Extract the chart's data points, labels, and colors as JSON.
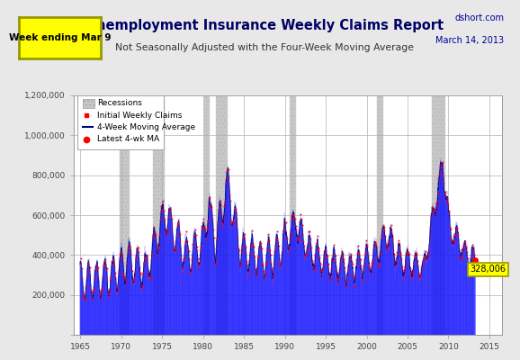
{
  "title": "Unemployment Insurance Weekly Claims Report",
  "subtitle": "Not Seasonally Adjusted with the Four-Week Moving Average",
  "top_left_label": "Week ending Mar 9",
  "top_right_line1": "dshort.com",
  "top_right_line2": "March 14, 2013",
  "latest_value": 328006,
  "latest_label": "328,006",
  "xlabel_years": [
    1965,
    1970,
    1975,
    1980,
    1985,
    1990,
    1995,
    2000,
    2005,
    2010,
    2015
  ],
  "ylim": [
    0,
    1200000
  ],
  "yticks": [
    0,
    200000,
    400000,
    600000,
    800000,
    1000000,
    1200000
  ],
  "recession_bands": [
    [
      1969.83,
      1970.92
    ],
    [
      1973.92,
      1975.25
    ],
    [
      1980.17,
      1980.75
    ],
    [
      1981.58,
      1982.92
    ],
    [
      1990.58,
      1991.25
    ],
    [
      2001.25,
      2001.92
    ],
    [
      2007.92,
      2009.5
    ]
  ],
  "bg_color": "#e8e8e8",
  "plot_bg_color": "#ffffff",
  "bar_color": "#1a1aff",
  "dot_color": "#ff0000",
  "recession_color": "#c8c8c8",
  "grid_color": "#b0b0b0",
  "title_color": "#000066",
  "subtitle_color": "#333333",
  "top_right_color": "#000099",
  "xlim": [
    1964.2,
    2016.5
  ]
}
